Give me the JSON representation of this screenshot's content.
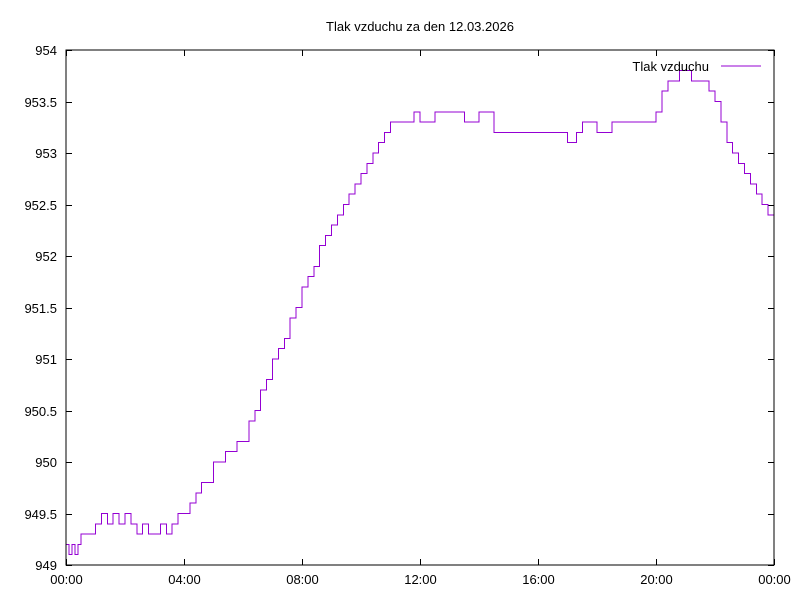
{
  "chart_data": {
    "type": "line",
    "title": "Tlak vzduchu za den 12.03.2026",
    "xlabel": "",
    "ylabel": "",
    "x_ticks": [
      "00:00",
      "04:00",
      "08:00",
      "12:00",
      "16:00",
      "20:00",
      "00:00"
    ],
    "y_ticks": [
      "949",
      "949.5",
      "950",
      "950.5",
      "951",
      "951.5",
      "952",
      "952.5",
      "953",
      "953.5",
      "954"
    ],
    "xlim_hours": [
      0,
      24
    ],
    "ylim": [
      949,
      954
    ],
    "grid": false,
    "legend_position": "top-right",
    "series": [
      {
        "name": "Tlak vzduchu",
        "color": "#9400d3",
        "x_hours": [
          0.0,
          0.1,
          0.2,
          0.3,
          0.4,
          0.5,
          0.6,
          0.7,
          0.8,
          1.0,
          1.2,
          1.4,
          1.6,
          1.8,
          2.0,
          2.2,
          2.4,
          2.6,
          2.8,
          3.0,
          3.2,
          3.4,
          3.6,
          3.8,
          4.0,
          4.2,
          4.4,
          4.6,
          4.8,
          5.0,
          5.2,
          5.4,
          5.6,
          5.8,
          6.0,
          6.2,
          6.4,
          6.6,
          6.8,
          7.0,
          7.2,
          7.4,
          7.6,
          7.8,
          8.0,
          8.2,
          8.4,
          8.6,
          8.8,
          9.0,
          9.2,
          9.4,
          9.6,
          9.8,
          10.0,
          10.2,
          10.4,
          10.6,
          10.8,
          11.0,
          11.2,
          11.4,
          11.6,
          11.8,
          12.0,
          12.5,
          13.0,
          13.5,
          14.0,
          14.5,
          15.0,
          15.5,
          16.0,
          16.5,
          17.0,
          17.3,
          17.5,
          18.0,
          18.5,
          19.0,
          19.5,
          19.8,
          20.0,
          20.2,
          20.4,
          20.6,
          20.8,
          21.0,
          21.2,
          21.4,
          21.6,
          21.8,
          22.0,
          22.2,
          22.4,
          22.6,
          22.8,
          23.0,
          23.2,
          23.4,
          23.6,
          23.8,
          24.0
        ],
        "values": [
          949.2,
          949.1,
          949.2,
          949.1,
          949.2,
          949.3,
          949.3,
          949.3,
          949.3,
          949.4,
          949.5,
          949.4,
          949.5,
          949.4,
          949.5,
          949.4,
          949.3,
          949.4,
          949.3,
          949.3,
          949.4,
          949.3,
          949.4,
          949.5,
          949.5,
          949.6,
          949.7,
          949.8,
          949.8,
          950.0,
          950.0,
          950.1,
          950.1,
          950.2,
          950.2,
          950.4,
          950.5,
          950.7,
          950.8,
          951.0,
          951.1,
          951.2,
          951.4,
          951.5,
          951.7,
          951.8,
          951.9,
          952.1,
          952.2,
          952.3,
          952.4,
          952.5,
          952.6,
          952.7,
          952.8,
          952.9,
          953.0,
          953.1,
          953.2,
          953.3,
          953.3,
          953.3,
          953.3,
          953.4,
          953.3,
          953.4,
          953.4,
          953.3,
          953.4,
          953.2,
          953.2,
          953.2,
          953.2,
          953.2,
          953.1,
          953.2,
          953.3,
          953.2,
          953.3,
          953.3,
          953.3,
          953.3,
          953.4,
          953.6,
          953.7,
          953.7,
          953.8,
          953.8,
          953.7,
          953.7,
          953.7,
          953.6,
          953.5,
          953.3,
          953.1,
          953.0,
          952.9,
          952.8,
          952.7,
          952.6,
          952.5,
          952.4,
          952.6
        ]
      }
    ]
  }
}
